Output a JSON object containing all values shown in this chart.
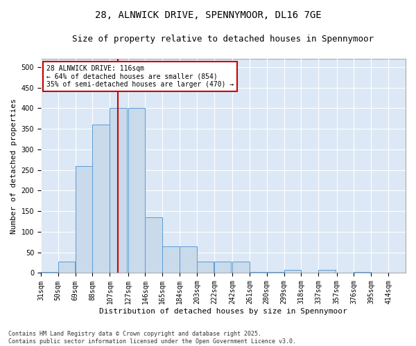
{
  "title1": "28, ALNWICK DRIVE, SPENNYMOOR, DL16 7GE",
  "title2": "Size of property relative to detached houses in Spennymoor",
  "xlabel": "Distribution of detached houses by size in Spennymoor",
  "ylabel": "Number of detached properties",
  "bins": [
    31,
    50,
    69,
    88,
    107,
    127,
    146,
    165,
    184,
    203,
    222,
    242,
    261,
    280,
    299,
    318,
    337,
    357,
    376,
    395,
    414
  ],
  "values": [
    2,
    28,
    260,
    360,
    400,
    400,
    135,
    65,
    65,
    28,
    28,
    28,
    2,
    2,
    8,
    0,
    8,
    0,
    2,
    0,
    0
  ],
  "bar_color": "#c9daea",
  "bar_edge_color": "#5b9bd5",
  "vline_x": 116,
  "vline_color": "#cc0000",
  "annotation_text": "28 ALNWICK DRIVE: 116sqm\n← 64% of detached houses are smaller (854)\n35% of semi-detached houses are larger (470) →",
  "annotation_box_color": "#ffffff",
  "annotation_box_edge": "#cc0000",
  "ylim": [
    0,
    520
  ],
  "yticks": [
    0,
    50,
    100,
    150,
    200,
    250,
    300,
    350,
    400,
    450,
    500
  ],
  "background_color": "#dce8f5",
  "grid_color": "#ffffff",
  "figure_bg": "#ffffff",
  "footer": "Contains HM Land Registry data © Crown copyright and database right 2025.\nContains public sector information licensed under the Open Government Licence v3.0.",
  "title_fontsize": 10,
  "subtitle_fontsize": 9,
  "axis_label_fontsize": 8,
  "tick_fontsize": 7
}
